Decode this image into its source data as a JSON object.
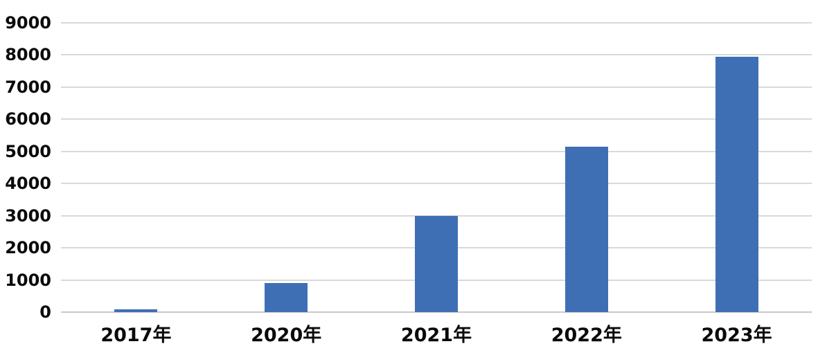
{
  "chart_data": {
    "type": "bar",
    "categories": [
      "2017年",
      "2020年",
      "2021年",
      "2022年",
      "2023年"
    ],
    "values": [
      80,
      900,
      3000,
      5150,
      7950
    ],
    "title": "",
    "xlabel": "",
    "ylabel": "",
    "ylim": [
      0,
      9000
    ],
    "yticks": [
      0,
      1000,
      2000,
      3000,
      4000,
      5000,
      6000,
      7000,
      8000,
      9000
    ],
    "grid": "horizontal-only",
    "legend_position": "none",
    "colors": {
      "bar": "#3E6FB5",
      "gridline": "#D9D9D9",
      "zero_line": "#C8C8C8",
      "tick_text": "#0a0a0a",
      "background": "#FFFFFF"
    }
  }
}
